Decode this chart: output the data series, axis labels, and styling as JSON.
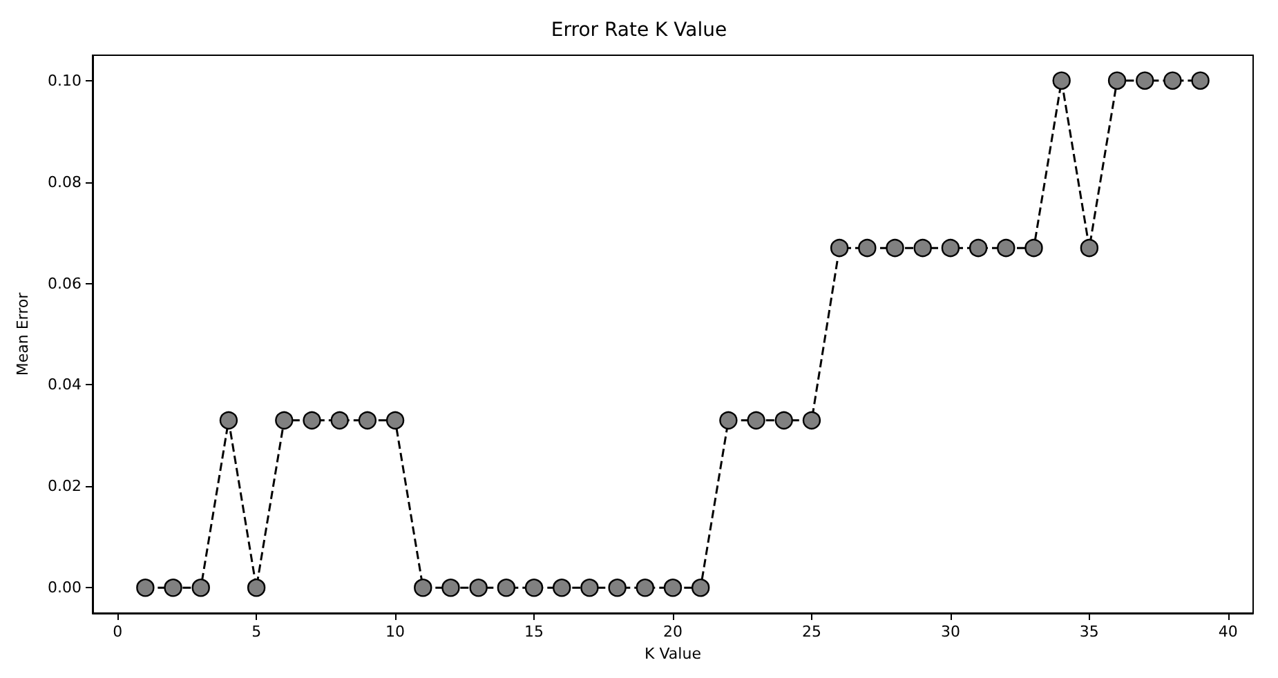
{
  "chart_data": {
    "type": "line",
    "title": "Error Rate K Value",
    "xlabel": "K Value",
    "ylabel": "Mean Error",
    "x": [
      1,
      2,
      3,
      4,
      5,
      6,
      7,
      8,
      9,
      10,
      11,
      12,
      13,
      14,
      15,
      16,
      17,
      18,
      19,
      20,
      21,
      22,
      23,
      24,
      25,
      26,
      27,
      28,
      29,
      30,
      31,
      32,
      33,
      34,
      35,
      36,
      37,
      38,
      39
    ],
    "series": [
      {
        "color": "#808080",
        "values": [
          0,
          0,
          0,
          0.033,
          0,
          0.033,
          0.033,
          0.033,
          0.033,
          0.033,
          0,
          0,
          0,
          0,
          0,
          0,
          0,
          0,
          0,
          0,
          0,
          0.033,
          0.033,
          0.033,
          0.033,
          0.067,
          0.067,
          0.067,
          0.067,
          0.067,
          0.067,
          0.067,
          0.067,
          0.1,
          0.067,
          0.1,
          0.1,
          0.1,
          0.1
        ]
      }
    ],
    "xlim": [
      -0.9,
      40.9
    ],
    "xticks": [
      0,
      5,
      10,
      15,
      20,
      25,
      30,
      35,
      40
    ],
    "ylim": [
      -0.005,
      0.105
    ],
    "yticks": [
      {
        "value": 0,
        "label": "0.00"
      },
      {
        "value": 0.02,
        "label": "0.02"
      },
      {
        "value": 0.04,
        "label": "0.04"
      },
      {
        "value": 0.06,
        "label": "0.06"
      },
      {
        "value": 0.08,
        "label": "0.08"
      },
      {
        "value": 0.1,
        "label": "0.10"
      }
    ],
    "marker": "circle",
    "line_style": "dashed"
  }
}
